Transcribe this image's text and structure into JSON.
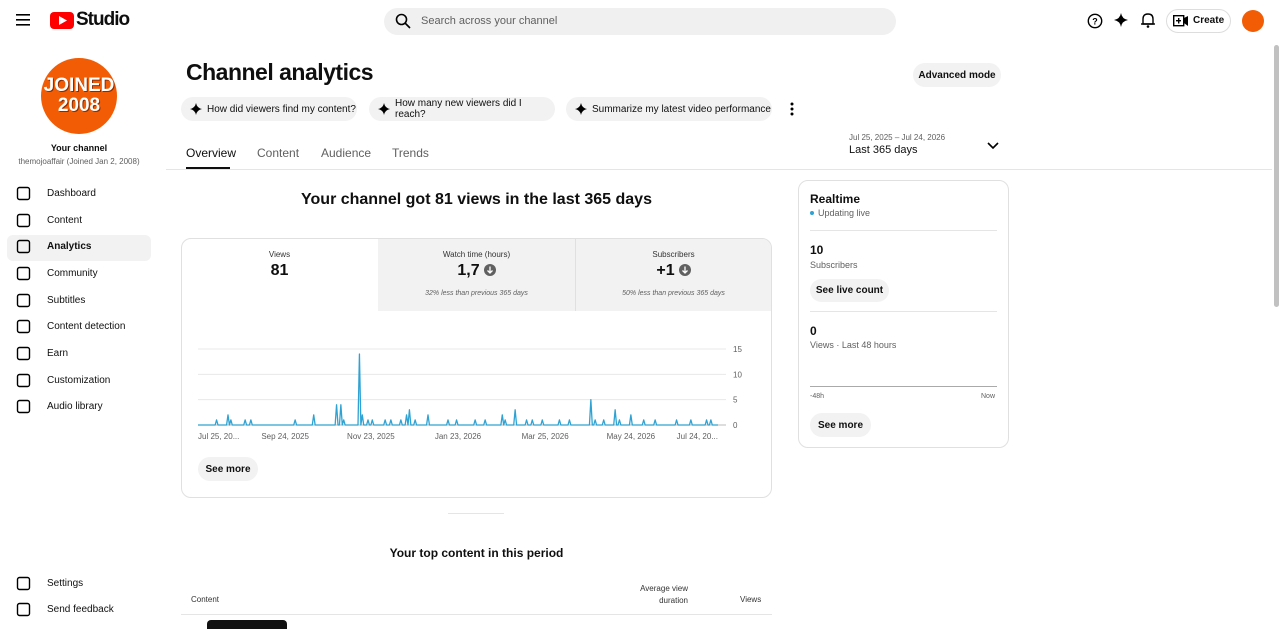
{
  "header": {
    "logo": "Studio",
    "search_placeholder": "Search across your channel",
    "create": "Create"
  },
  "sidebar": {
    "avatar_line1": "JOINED",
    "avatar_line2": "2008",
    "channel_label": "Your channel",
    "channel_name": "themojoaffair (Joined Jan 2, 2008)",
    "nav": [
      "Dashboard",
      "Content",
      "Analytics",
      "Community",
      "Subtitles",
      "Content detection",
      "Earn",
      "Customization",
      "Audio library"
    ],
    "bottom_nav": [
      "Settings",
      "Send feedback"
    ]
  },
  "page": {
    "title": "Channel analytics",
    "advanced_mode": "Advanced mode",
    "suggestions": [
      "How did viewers find my content?",
      "How many new viewers did I reach?",
      "Summarize my latest video performance"
    ],
    "tabs": [
      "Overview",
      "Content",
      "Audience",
      "Trends"
    ],
    "date_range": "Jul 25, 2025 – Jul 24, 2026",
    "period": "Last 365 days",
    "headline": "Your channel got 81 views in the last 365 days",
    "metrics": [
      {
        "label": "Views",
        "value": "81"
      },
      {
        "label": "Watch time (hours)",
        "value": "1,7",
        "note": "32% less than previous 365 days"
      },
      {
        "label": "Subscribers",
        "value": "+1",
        "note": "50% less than previous 365 days"
      }
    ],
    "see_more": "See more",
    "top_content_title": "Your top content in this period",
    "table_headers": [
      "Content",
      "Average view duration",
      "Views"
    ]
  },
  "realtime": {
    "title": "Realtime",
    "status": "Updating live",
    "subscribers_value": "10",
    "subscribers_label": "Subscribers",
    "see_live": "See live count",
    "views_value": "0",
    "views_label": "Views · Last 48 hours",
    "axis_start": "-48h",
    "axis_end": "Now",
    "see_more": "See more"
  },
  "chart_data": {
    "type": "line",
    "color": "#2ea3d3",
    "grid": true,
    "xlim": [
      0,
      364
    ],
    "ylim": [
      0,
      15
    ],
    "yticks": [
      0,
      5,
      10,
      15
    ],
    "xticks": [
      {
        "value": 0,
        "label": "Jul 25, 20..."
      },
      {
        "value": 61,
        "label": "Sep 24, 2025"
      },
      {
        "value": 121,
        "label": "Nov 23, 2025"
      },
      {
        "value": 182,
        "label": "Jan 23, 2026"
      },
      {
        "value": 243,
        "label": "Mar 25, 2026"
      },
      {
        "value": 303,
        "label": "May 24, 2026"
      },
      {
        "value": 364,
        "label": "Jul 24, 20..."
      }
    ],
    "values": [
      0,
      0,
      0,
      0,
      0,
      0,
      0,
      0,
      0,
      0,
      0,
      0,
      0,
      1,
      0,
      0,
      0,
      0,
      0,
      0,
      0,
      2,
      0,
      1,
      0,
      0,
      0,
      0,
      0,
      0,
      0,
      0,
      0,
      1,
      0,
      0,
      0,
      1,
      0,
      0,
      0,
      0,
      0,
      0,
      0,
      0,
      0,
      0,
      0,
      0,
      0,
      0,
      0,
      0,
      0,
      0,
      0,
      0,
      0,
      0,
      0,
      0,
      0,
      0,
      0,
      0,
      0,
      0,
      1,
      0,
      0,
      0,
      0,
      0,
      0,
      0,
      0,
      0,
      0,
      0,
      0,
      2,
      0,
      0,
      0,
      0,
      0,
      0,
      0,
      0,
      0,
      0,
      0,
      0,
      0,
      0,
      0,
      4,
      0,
      0,
      4,
      0,
      1,
      0,
      0,
      0,
      0,
      0,
      0,
      0,
      0,
      0,
      0,
      14,
      0,
      2,
      0,
      0,
      0,
      1,
      0,
      0,
      1,
      0,
      0,
      0,
      0,
      0,
      0,
      0,
      0,
      1,
      0,
      0,
      0,
      1,
      0,
      0,
      0,
      0,
      0,
      0,
      1,
      0,
      0,
      0,
      2,
      0,
      3,
      0,
      0,
      0,
      1,
      0,
      0,
      0,
      0,
      0,
      0,
      0,
      0,
      2,
      0,
      0,
      0,
      0,
      0,
      0,
      0,
      0,
      0,
      0,
      0,
      0,
      0,
      1,
      0,
      0,
      0,
      0,
      0,
      1,
      0,
      0,
      0,
      0,
      0,
      0,
      0,
      0,
      0,
      0,
      0,
      0,
      1,
      0,
      0,
      0,
      0,
      0,
      0,
      1,
      0,
      0,
      0,
      0,
      0,
      0,
      0,
      0,
      0,
      0,
      0,
      2,
      0,
      1,
      0,
      0,
      0,
      0,
      0,
      0,
      3,
      0,
      0,
      0,
      0,
      0,
      0,
      0,
      1,
      0,
      0,
      0,
      1,
      0,
      0,
      0,
      0,
      0,
      0,
      1,
      0,
      0,
      0,
      0,
      0,
      0,
      0,
      0,
      0,
      0,
      0,
      1,
      0,
      0,
      0,
      0,
      0,
      0,
      1,
      0,
      0,
      0,
      0,
      0,
      0,
      0,
      0,
      0,
      0,
      0,
      0,
      0,
      0,
      5,
      0,
      0,
      1,
      0,
      0,
      0,
      0,
      0,
      1,
      0,
      0,
      0,
      0,
      0,
      0,
      0,
      3,
      0,
      0,
      1,
      0,
      0,
      0,
      0,
      0,
      0,
      0,
      2,
      0,
      0,
      0,
      0,
      0,
      0,
      0,
      0,
      1,
      0,
      0,
      0,
      0,
      0,
      0,
      0,
      1,
      0,
      0,
      0,
      0,
      0,
      0,
      0,
      0,
      0,
      0,
      0,
      0,
      0,
      0,
      1,
      0,
      0,
      0,
      0,
      0,
      0,
      0,
      0,
      0,
      1,
      0,
      0,
      0,
      0,
      0,
      0,
      0,
      0,
      0,
      0,
      1,
      0,
      0,
      1,
      0,
      0,
      0,
      0,
      0
    ]
  }
}
